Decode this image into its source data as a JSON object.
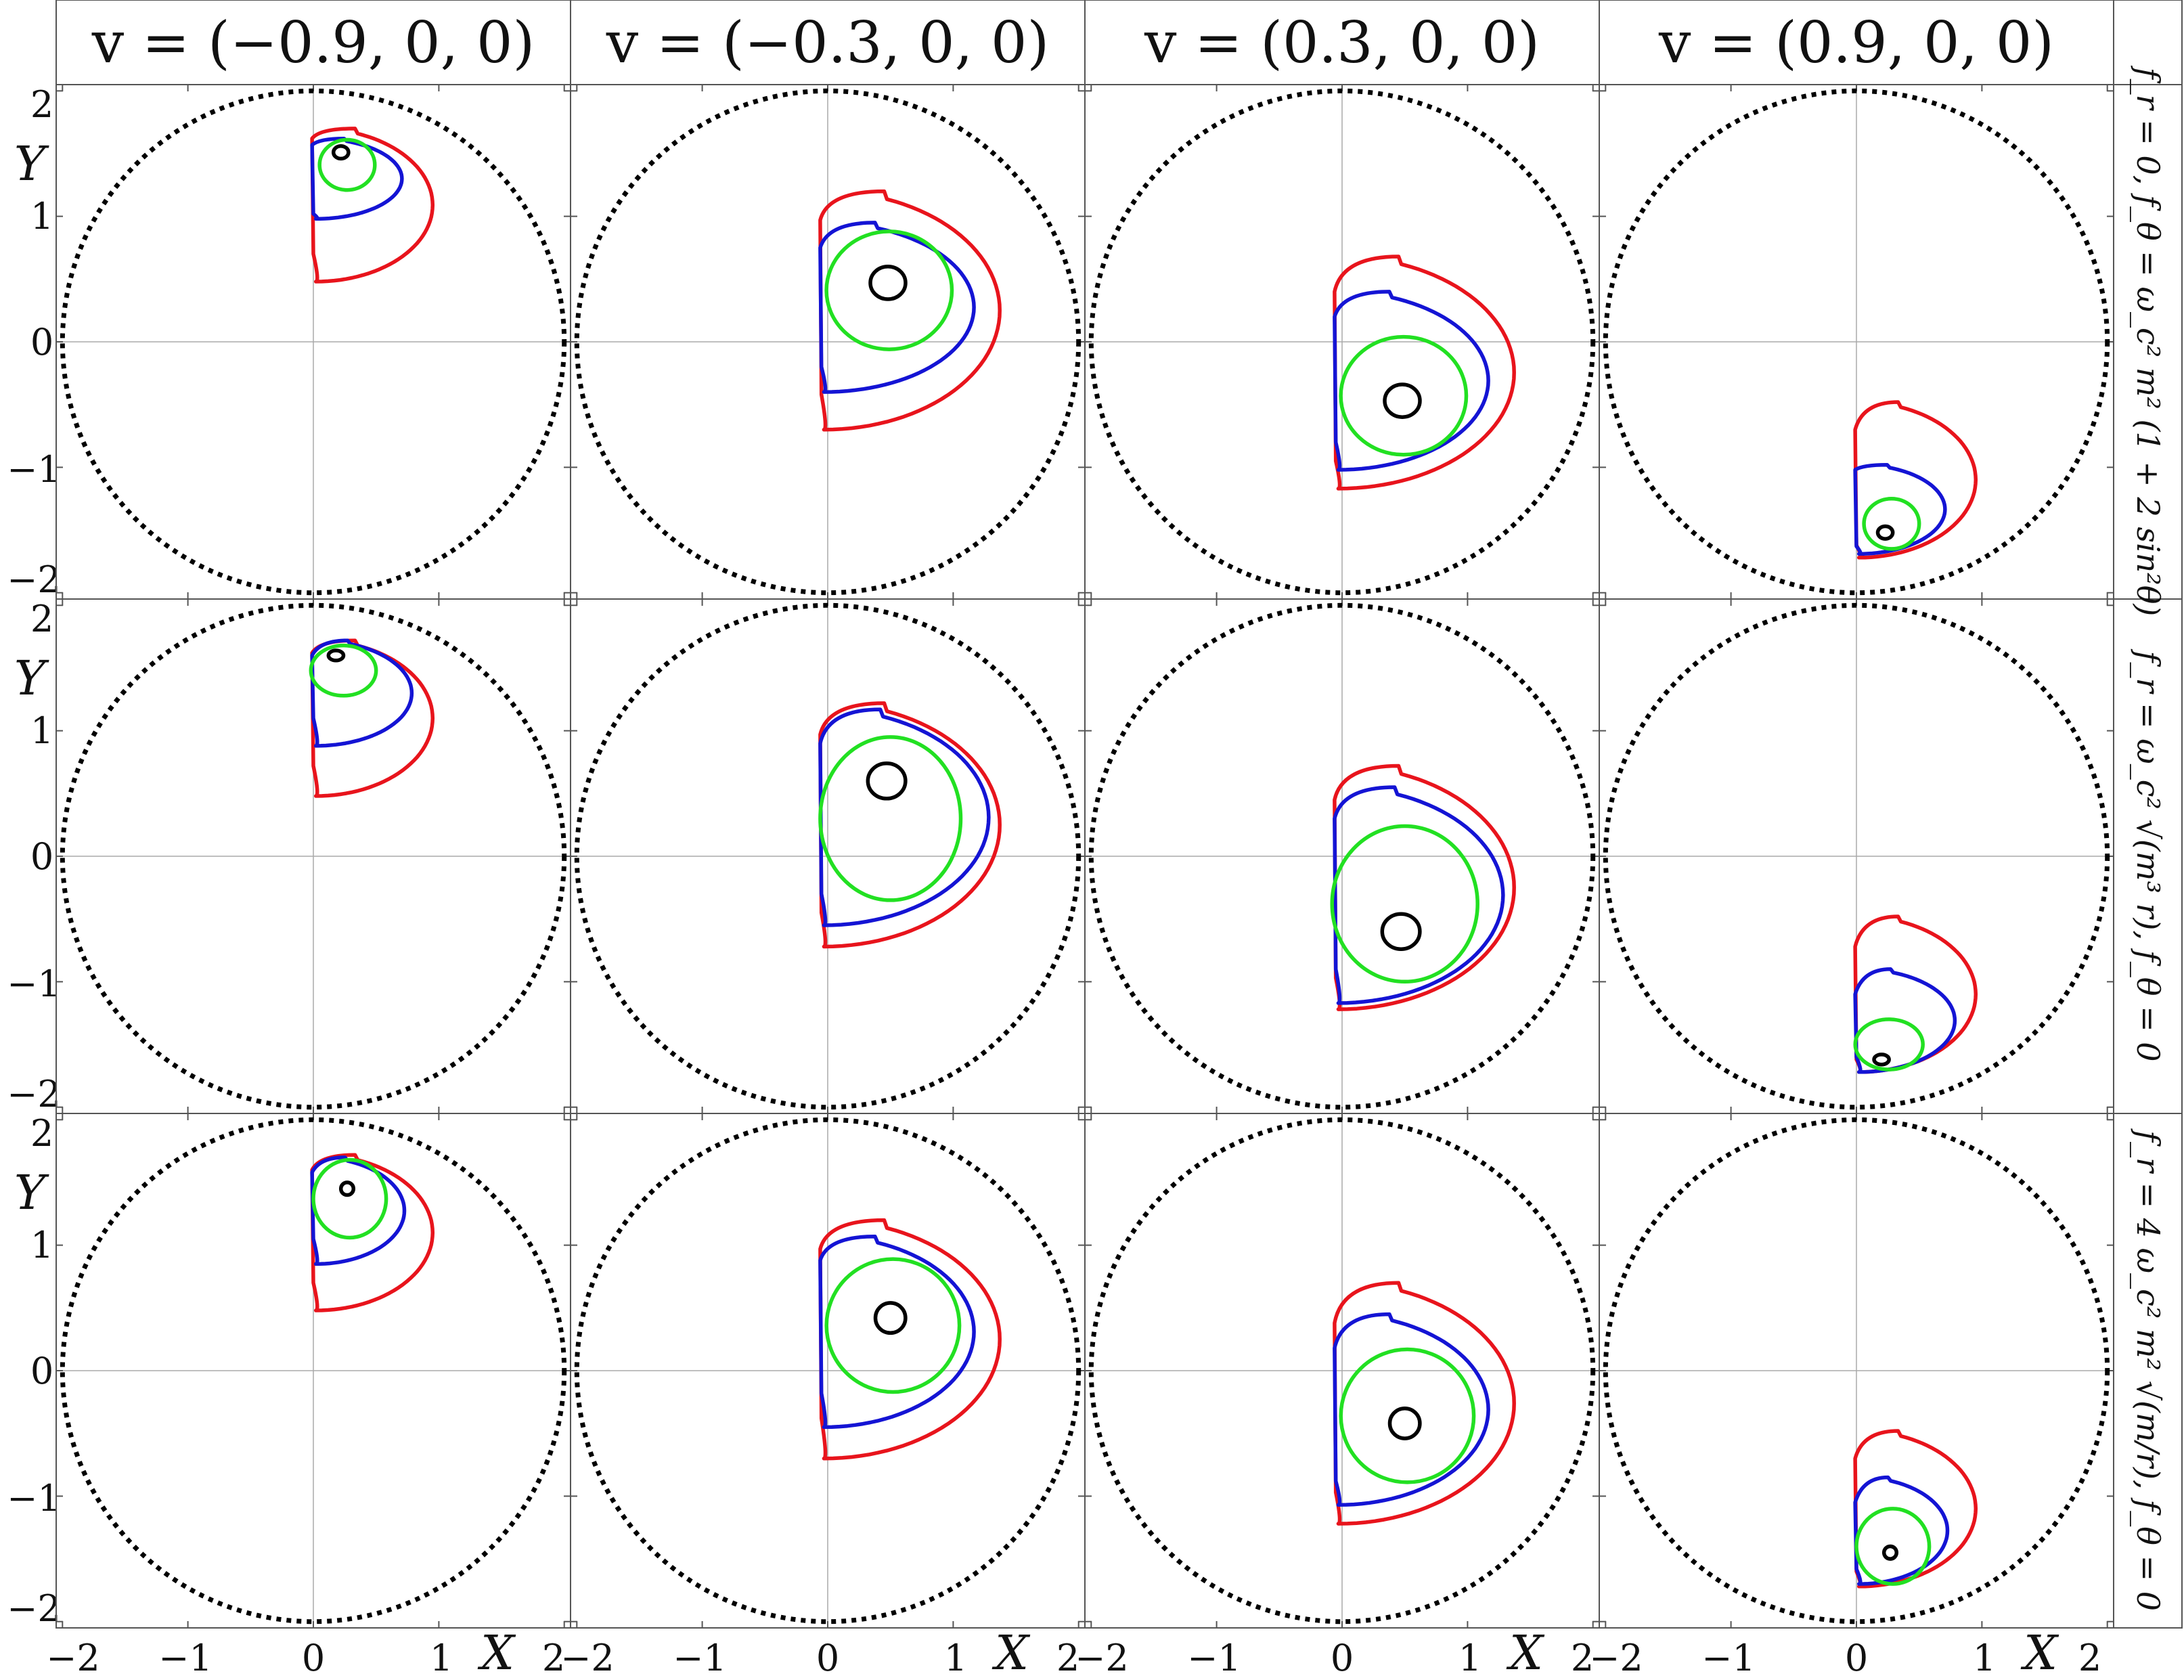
{
  "chart_data": {
    "type": "line",
    "title": "",
    "columns": [
      "v = (−0.9, 0, 0)",
      "v = (−0.3, 0, 0)",
      "v = (0.3, 0, 0)",
      "v = (0.9, 0, 0)"
    ],
    "rows": [
      "f_r = 0, f_θ = ω_c² m² (1 + 2 sin²θ)",
      "f_r = ω_c² √(m³ r), f_θ = 0",
      "f_r = 4 ω_c² m² √(m/r), f_θ = 0"
    ],
    "xlabel": "X",
    "ylabel": "Y",
    "xlim": [
      -2.05,
      2.05
    ],
    "ylim": [
      -2.05,
      2.05
    ],
    "x_ticks": [
      "−2",
      "−1",
      "0",
      "1",
      "2"
    ],
    "y_ticks": [
      "2",
      "1",
      "0",
      "−1",
      "−2"
    ],
    "x_tick_values": [
      -2,
      -1,
      0,
      1,
      2
    ],
    "y_tick_values": [
      2,
      1,
      0,
      -1,
      -2
    ],
    "boundary_circle": {
      "radius": 2,
      "style": "dotted",
      "color": "#000000"
    },
    "series_colors": {
      "red": "#e8141c",
      "blue": "#1414d4",
      "green": "#22e022",
      "black": "#000000"
    },
    "panels": [
      [
        {
          "red": {
            "x0": 0.0,
            "top": 1.7,
            "bottom": 0.48,
            "cut_top": 1.62,
            "cut_bottom": 0.7,
            "right": 0.95
          },
          "blue": {
            "x0": 0.0,
            "top": 1.62,
            "bottom": 0.98,
            "cut_top": 1.57,
            "cut_bottom": 1.02,
            "right": 0.7
          },
          "green": {
            "cx": 0.27,
            "cy": 1.41,
            "rx": 0.22,
            "ry": 0.2
          },
          "black": {
            "cx": 0.22,
            "cy": 1.51,
            "rx": 0.06,
            "ry": 0.05
          }
        },
        {
          "red": {
            "x0": -0.05,
            "top": 1.2,
            "bottom": -0.7,
            "cut_top": 0.97,
            "cut_bottom": -0.42,
            "right": 1.38
          },
          "blue": {
            "x0": -0.05,
            "top": 0.95,
            "bottom": -0.4,
            "cut_top": 0.75,
            "cut_bottom": -0.2,
            "right": 1.17
          },
          "green": {
            "cx": 0.49,
            "cy": 0.41,
            "rx": 0.5,
            "ry": 0.47
          },
          "black": {
            "cx": 0.48,
            "cy": 0.47,
            "rx": 0.14,
            "ry": 0.13
          }
        },
        {
          "red": {
            "x0": -0.05,
            "top": 0.68,
            "bottom": -1.17,
            "cut_top": 0.4,
            "cut_bottom": -0.95,
            "right": 1.38
          },
          "blue": {
            "x0": -0.05,
            "top": 0.4,
            "bottom": -1.02,
            "cut_top": 0.2,
            "cut_bottom": -0.8,
            "right": 1.17
          },
          "green": {
            "cx": 0.49,
            "cy": -0.43,
            "rx": 0.5,
            "ry": 0.47
          },
          "black": {
            "cx": 0.48,
            "cy": -0.47,
            "rx": 0.14,
            "ry": 0.13
          }
        },
        {
          "red": {
            "x0": 0.0,
            "top": -0.48,
            "bottom": -1.72,
            "cut_top": -0.7,
            "cut_bottom": -1.62,
            "right": 0.95
          },
          "blue": {
            "x0": 0.0,
            "top": -0.98,
            "bottom": -1.69,
            "cut_top": -1.02,
            "cut_bottom": -1.63,
            "right": 0.7
          },
          "green": {
            "cx": 0.28,
            "cy": -1.45,
            "rx": 0.22,
            "ry": 0.2
          },
          "black": {
            "cx": 0.23,
            "cy": -1.52,
            "rx": 0.06,
            "ry": 0.05
          }
        }
      ],
      [
        {
          "red": {
            "x0": 0.0,
            "top": 1.72,
            "bottom": 0.48,
            "cut_top": 1.62,
            "cut_bottom": 0.72,
            "right": 0.95
          },
          "blue": {
            "x0": 0.0,
            "top": 1.72,
            "bottom": 0.88,
            "cut_top": 1.6,
            "cut_bottom": 1.1,
            "right": 0.78
          },
          "green": {
            "cx": 0.24,
            "cy": 1.48,
            "rx": 0.26,
            "ry": 0.2
          },
          "black": {
            "cx": 0.18,
            "cy": 1.6,
            "rx": 0.06,
            "ry": 0.04
          }
        },
        {
          "red": {
            "x0": -0.05,
            "top": 1.22,
            "bottom": -0.72,
            "cut_top": 0.97,
            "cut_bottom": -0.45,
            "right": 1.38
          },
          "blue": {
            "x0": -0.05,
            "top": 1.17,
            "bottom": -0.55,
            "cut_top": 0.9,
            "cut_bottom": -0.3,
            "right": 1.29
          },
          "green": {
            "cx": 0.5,
            "cy": 0.3,
            "rx": 0.56,
            "ry": 0.65
          },
          "black": {
            "cx": 0.47,
            "cy": 0.6,
            "rx": 0.15,
            "ry": 0.14
          }
        },
        {
          "red": {
            "x0": -0.05,
            "top": 0.72,
            "bottom": -1.22,
            "cut_top": 0.45,
            "cut_bottom": -0.97,
            "right": 1.38
          },
          "blue": {
            "x0": -0.05,
            "top": 0.55,
            "bottom": -1.17,
            "cut_top": 0.3,
            "cut_bottom": -0.9,
            "right": 1.29
          },
          "green": {
            "cx": 0.5,
            "cy": -0.38,
            "rx": 0.58,
            "ry": 0.62
          },
          "black": {
            "cx": 0.47,
            "cy": -0.6,
            "rx": 0.15,
            "ry": 0.14
          }
        },
        {
          "red": {
            "x0": 0.0,
            "top": -0.48,
            "bottom": -1.72,
            "cut_top": -0.72,
            "cut_bottom": -1.62,
            "right": 0.95
          },
          "blue": {
            "x0": 0.0,
            "top": -0.9,
            "bottom": -1.72,
            "cut_top": -1.1,
            "cut_bottom": -1.6,
            "right": 0.78
          },
          "green": {
            "cx": 0.26,
            "cy": -1.5,
            "rx": 0.27,
            "ry": 0.2
          },
          "black": {
            "cx": 0.2,
            "cy": -1.62,
            "rx": 0.06,
            "ry": 0.04
          }
        }
      ],
      [
        {
          "red": {
            "x0": 0.0,
            "top": 1.72,
            "bottom": 0.48,
            "cut_top": 1.6,
            "cut_bottom": 0.7,
            "right": 0.95
          },
          "blue": {
            "x0": 0.0,
            "top": 1.7,
            "bottom": 0.85,
            "cut_top": 1.58,
            "cut_bottom": 1.05,
            "right": 0.72
          },
          "green": {
            "cx": 0.29,
            "cy": 1.37,
            "rx": 0.29,
            "ry": 0.31
          },
          "black": {
            "cx": 0.27,
            "cy": 1.45,
            "rx": 0.05,
            "ry": 0.05
          }
        },
        {
          "red": {
            "x0": -0.05,
            "top": 1.2,
            "bottom": -0.7,
            "cut_top": 0.97,
            "cut_bottom": -0.38,
            "right": 1.38
          },
          "blue": {
            "x0": -0.05,
            "top": 1.07,
            "bottom": -0.45,
            "cut_top": 0.88,
            "cut_bottom": -0.18,
            "right": 1.17
          },
          "green": {
            "cx": 0.52,
            "cy": 0.36,
            "rx": 0.53,
            "ry": 0.53
          },
          "black": {
            "cx": 0.5,
            "cy": 0.42,
            "rx": 0.12,
            "ry": 0.12
          }
        },
        {
          "red": {
            "x0": -0.05,
            "top": 0.7,
            "bottom": -1.22,
            "cut_top": 0.38,
            "cut_bottom": -0.97,
            "right": 1.38
          },
          "blue": {
            "x0": -0.05,
            "top": 0.45,
            "bottom": -1.07,
            "cut_top": 0.18,
            "cut_bottom": -0.88,
            "right": 1.17
          },
          "green": {
            "cx": 0.52,
            "cy": -0.36,
            "rx": 0.53,
            "ry": 0.53
          },
          "black": {
            "cx": 0.5,
            "cy": -0.42,
            "rx": 0.12,
            "ry": 0.12
          }
        },
        {
          "red": {
            "x0": 0.0,
            "top": -0.48,
            "bottom": -1.72,
            "cut_top": -0.7,
            "cut_bottom": -1.6,
            "right": 0.95
          },
          "blue": {
            "x0": 0.0,
            "top": -0.85,
            "bottom": -1.7,
            "cut_top": -1.05,
            "cut_bottom": -1.58,
            "right": 0.72
          },
          "green": {
            "cx": 0.29,
            "cy": -1.4,
            "rx": 0.29,
            "ry": 0.3
          },
          "black": {
            "cx": 0.27,
            "cy": -1.45,
            "rx": 0.05,
            "ry": 0.05
          }
        }
      ]
    ]
  }
}
